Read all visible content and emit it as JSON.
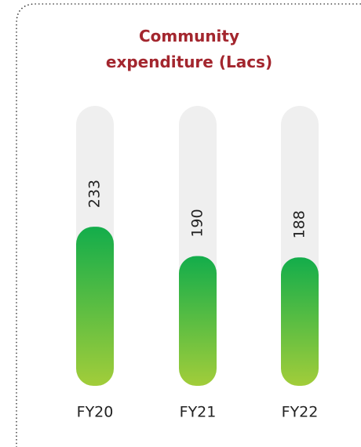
{
  "chart_data": {
    "type": "bar",
    "title": "Community expenditure (Lacs)",
    "categories": [
      "FY20",
      "FY21",
      "FY22"
    ],
    "values": [
      233,
      190,
      188
    ],
    "ylim": [
      0,
      410
    ],
    "color_top": "#13ad4b",
    "color_bottom": "#a2cd3a",
    "track_color": "#efefef"
  }
}
